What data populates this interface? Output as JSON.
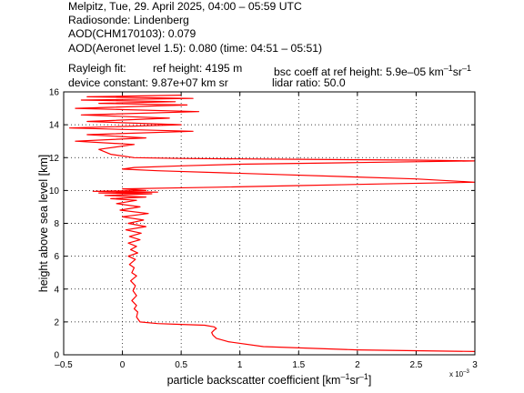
{
  "header": {
    "title": "Melpitz, Tue, 29. April 2025, 04:00 – 05:59 UTC",
    "radiosonde": "Radiosonde: Lindenberg",
    "aod_chm": "AOD(CHM170103): 0.079",
    "aod_aeronet": "AOD(Aeronet level 1.5): 0.080   (time: 04:51 – 05:51)",
    "rayleigh_label": "Rayleigh fit:",
    "ref_height": "ref height: 4195 m",
    "bsc_coeff_prefix": "bsc coeff at ref height: 5.9e–05 km",
    "bsc_coeff_sup1": "–1",
    "bsc_coeff_mid": "sr",
    "bsc_coeff_sup2": "–1",
    "device_constant": "device constant: 9.87e+07 km sr",
    "lidar_ratio": "lidar ratio: 50.0"
  },
  "chart_data": {
    "type": "line",
    "xlabel_main": "particle backscatter coefficient [km",
    "xlabel_sup1": "–1",
    "xlabel_mid": "sr",
    "xlabel_sup2": "–1",
    "xlabel_end": "]",
    "ylabel": "height above sea level [km]",
    "x_exponent_label": "x 10",
    "x_exponent_power": "–3",
    "xlim": [
      -0.5,
      3
    ],
    "ylim": [
      0,
      16
    ],
    "xticks": [
      -0.5,
      0,
      0.5,
      1,
      1.5,
      2,
      2.5,
      3
    ],
    "xtick_labels": [
      "–0.5",
      "0",
      "0.5",
      "1",
      "1.5",
      "2",
      "2.5",
      "3"
    ],
    "yticks": [
      0,
      2,
      4,
      6,
      8,
      10,
      12,
      14,
      16
    ],
    "ytick_labels": [
      "0",
      "2",
      "4",
      "6",
      "8",
      "10",
      "12",
      "14",
      "16"
    ],
    "grid": true,
    "line_color": "#ff0000",
    "series": [
      {
        "x": [
          3.0,
          2.0,
          1.2,
          0.9,
          0.8,
          0.77,
          0.76,
          0.78,
          0.8,
          0.78,
          0.7,
          0.5,
          0.3,
          0.15,
          0.12,
          0.13,
          0.1,
          0.12,
          0.08,
          0.12,
          0.09,
          0.11,
          0.07,
          0.12,
          0.08,
          0.1,
          0.06,
          0.11,
          0.05,
          0.13,
          0.07,
          0.12,
          0.05,
          0.15,
          0.06,
          0.16,
          0.03,
          0.2,
          0.05,
          0.18,
          0.0,
          0.22,
          -0.02,
          0.15,
          -0.05,
          0.12,
          -0.1,
          0.2,
          -0.15,
          0.25,
          -0.2,
          0.3,
          -0.25,
          0.2,
          0.0,
          0.4,
          0.8,
          1.5,
          2.2,
          3.0,
          2.5,
          1.2,
          0.3,
          0.0,
          0.1,
          0.5,
          1.0,
          2.0,
          3.0,
          2.5,
          1.5,
          0.5,
          0.1,
          -0.1,
          -0.2,
          0.1,
          -0.4,
          0.2,
          -0.3,
          0.6,
          -0.45,
          0.5,
          -0.3,
          0.4,
          -0.35,
          0.65,
          -0.4,
          0.55,
          -0.2,
          0.45,
          -0.35,
          0.6,
          -0.3,
          0.5
        ],
        "y": [
          0.2,
          0.3,
          0.5,
          0.8,
          1.0,
          1.2,
          1.35,
          1.5,
          1.6,
          1.7,
          1.8,
          1.85,
          1.9,
          2.0,
          2.3,
          2.6,
          2.8,
          3.0,
          3.3,
          3.6,
          3.9,
          4.2,
          4.5,
          4.8,
          5.0,
          5.3,
          5.5,
          5.8,
          6.0,
          6.2,
          6.4,
          6.6,
          6.8,
          7.0,
          7.2,
          7.4,
          7.6,
          7.8,
          8.0,
          8.2,
          8.4,
          8.6,
          8.8,
          9.0,
          9.2,
          9.4,
          9.5,
          9.6,
          9.7,
          9.8,
          9.85,
          9.9,
          9.95,
          10.0,
          10.1,
          10.15,
          10.2,
          10.3,
          10.4,
          10.5,
          10.7,
          11.0,
          11.2,
          11.3,
          11.4,
          11.5,
          11.6,
          11.7,
          11.8,
          11.85,
          11.9,
          11.95,
          12.0,
          12.2,
          12.5,
          12.8,
          13.0,
          13.2,
          13.4,
          13.6,
          13.8,
          14.0,
          14.2,
          14.4,
          14.6,
          14.8,
          15.0,
          15.2,
          15.3,
          15.4,
          15.5,
          15.6,
          15.7,
          15.8
        ]
      }
    ]
  }
}
